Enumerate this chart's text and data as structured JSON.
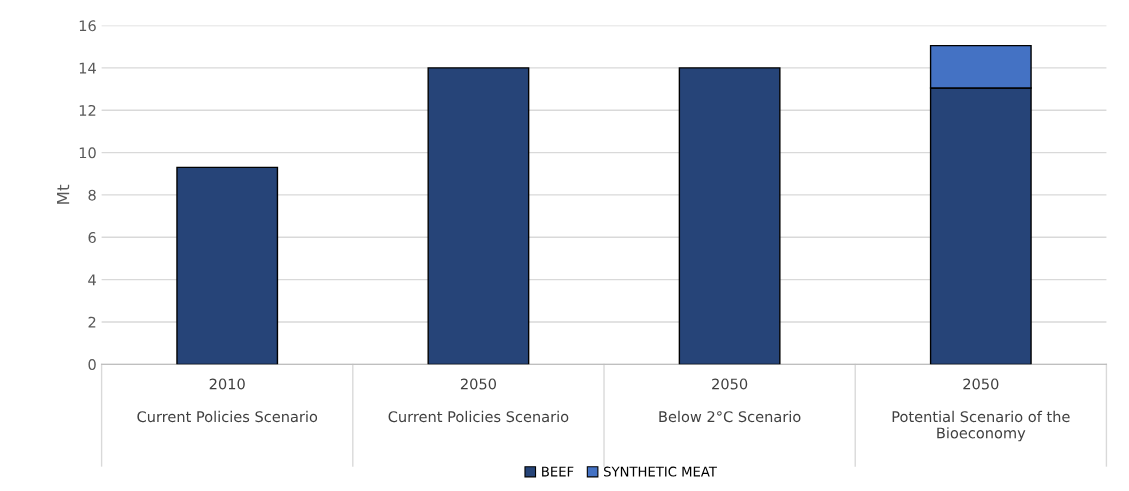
{
  "chart_data": {
    "type": "bar",
    "stacked": true,
    "ylabel": "Mt",
    "categories": [
      "2010\n\nCurrent Policies Scenario",
      "2050\n\nCurrent Policies Scenario",
      "2050\n\nBelow 2°C Scenario",
      "2050\n\nPotential Scenario of the\nBioeconomy"
    ],
    "series": [
      {
        "name": "BEEF",
        "color": "#264478",
        "values": [
          9.3,
          14.0,
          14.0,
          13.05
        ]
      },
      {
        "name": "SYNTHETIC MEAT",
        "color": "#4472c4",
        "values": [
          null,
          null,
          null,
          2.0
        ]
      }
    ],
    "ylim": [
      0,
      16
    ],
    "yticks": [
      0,
      2,
      4,
      6,
      8,
      10,
      12,
      14,
      16
    ],
    "grid": "y",
    "legend": "bottom"
  }
}
